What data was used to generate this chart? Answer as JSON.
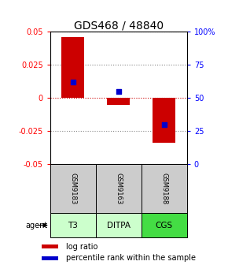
{
  "title": "GDS468 / 48840",
  "samples": [
    "GSM9183",
    "GSM9163",
    "GSM9188"
  ],
  "agents": [
    "T3",
    "DITPA",
    "CGS"
  ],
  "log_ratios": [
    0.046,
    -0.005,
    -0.034
  ],
  "percentile_ranks": [
    62,
    55,
    30
  ],
  "ylim_left": [
    -0.05,
    0.05
  ],
  "ylim_right": [
    0,
    100
  ],
  "yticks_left": [
    -0.05,
    -0.025,
    0,
    0.025,
    0.05
  ],
  "yticks_right": [
    0,
    25,
    50,
    75,
    100
  ],
  "ytick_left_labels": [
    "-0.05",
    "-0.025",
    "0",
    "0.025",
    "0.05"
  ],
  "ytick_right_labels": [
    "0",
    "25",
    "50",
    "75",
    "100%"
  ],
  "bar_color": "#cc0000",
  "dot_color": "#0000cc",
  "agent_colors": [
    "#ccffcc",
    "#ccffcc",
    "#44dd44"
  ],
  "sample_bg": "#cccccc",
  "zero_line_color": "#cc0000",
  "grid_dotted_color": "#888888",
  "title_fontsize": 10,
  "tick_fontsize": 7,
  "label_fontsize": 7,
  "bar_width": 0.5
}
